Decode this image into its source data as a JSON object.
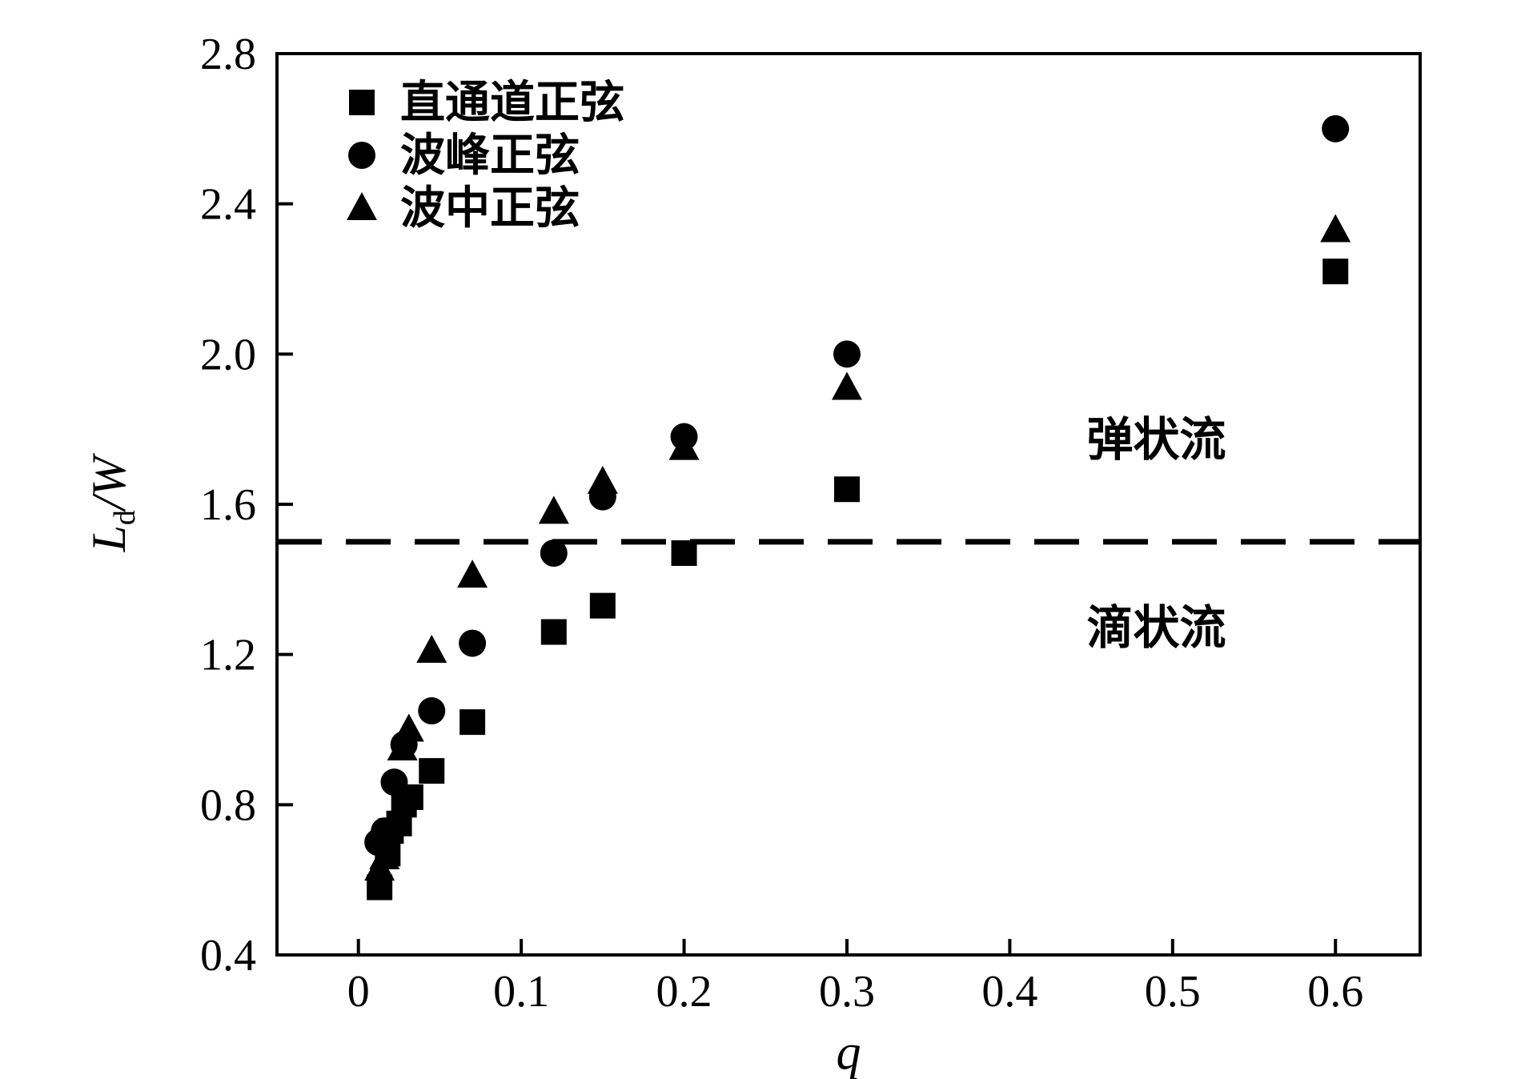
{
  "figure": {
    "background": "#ffffff",
    "ink_color": "#000000"
  },
  "chart_data": {
    "type": "scatter",
    "title": "",
    "xlabel": "q",
    "ylabel": "Ld/W",
    "ylabel_parts": {
      "main": "L",
      "sub": "d",
      "rest": "/W"
    },
    "xlim": [
      -0.05,
      0.652
    ],
    "ylim": [
      0.4,
      2.8
    ],
    "x_ticks": [
      0,
      0.1,
      0.2,
      0.3,
      0.4,
      0.5,
      0.6
    ],
    "x_tick_labels": [
      "0",
      "0.1",
      "0.2",
      "0.3",
      "0.4",
      "0.5",
      "0.6"
    ],
    "y_ticks": [
      0.4,
      0.8,
      1.2,
      1.6,
      2.0,
      2.4,
      2.8
    ],
    "y_tick_labels": [
      "0.4",
      "0.8",
      "1.2",
      "1.6",
      "2.0",
      "2.4",
      "2.8"
    ],
    "grid": false,
    "legend_position": "top-left-inside",
    "series": [
      {
        "name": "直通道正弦",
        "marker": "square",
        "color": "#000000",
        "points": [
          [
            0.013,
            0.58
          ],
          [
            0.018,
            0.67
          ],
          [
            0.02,
            0.73
          ],
          [
            0.025,
            0.75
          ],
          [
            0.028,
            0.8
          ],
          [
            0.032,
            0.82
          ],
          [
            0.045,
            0.89
          ],
          [
            0.07,
            1.02
          ],
          [
            0.12,
            1.26
          ],
          [
            0.15,
            1.33
          ],
          [
            0.2,
            1.47
          ],
          [
            0.3,
            1.64
          ],
          [
            0.6,
            2.22
          ]
        ]
      },
      {
        "name": "波峰正弦",
        "marker": "circle",
        "color": "#000000",
        "points": [
          [
            0.012,
            0.7
          ],
          [
            0.016,
            0.73
          ],
          [
            0.022,
            0.86
          ],
          [
            0.028,
            0.96
          ],
          [
            0.045,
            1.05
          ],
          [
            0.07,
            1.23
          ],
          [
            0.12,
            1.47
          ],
          [
            0.15,
            1.62
          ],
          [
            0.2,
            1.78
          ],
          [
            0.3,
            2.0
          ],
          [
            0.6,
            2.6
          ]
        ]
      },
      {
        "name": "波中正弦",
        "marker": "triangle",
        "color": "#000000",
        "points": [
          [
            0.013,
            0.63
          ],
          [
            0.016,
            0.66
          ],
          [
            0.027,
            0.95
          ],
          [
            0.031,
            1.0
          ],
          [
            0.045,
            1.21
          ],
          [
            0.07,
            1.41
          ],
          [
            0.12,
            1.58
          ],
          [
            0.15,
            1.66
          ],
          [
            0.2,
            1.75
          ],
          [
            0.3,
            1.91
          ],
          [
            0.6,
            2.33
          ]
        ]
      }
    ],
    "reference_line": {
      "y": 1.5,
      "style": "dashed",
      "color": "#000000"
    },
    "annotations": [
      {
        "text": "弹状流",
        "x": 0.49,
        "y": 1.77
      },
      {
        "text": "滴状流",
        "x": 0.49,
        "y": 1.27
      }
    ]
  }
}
